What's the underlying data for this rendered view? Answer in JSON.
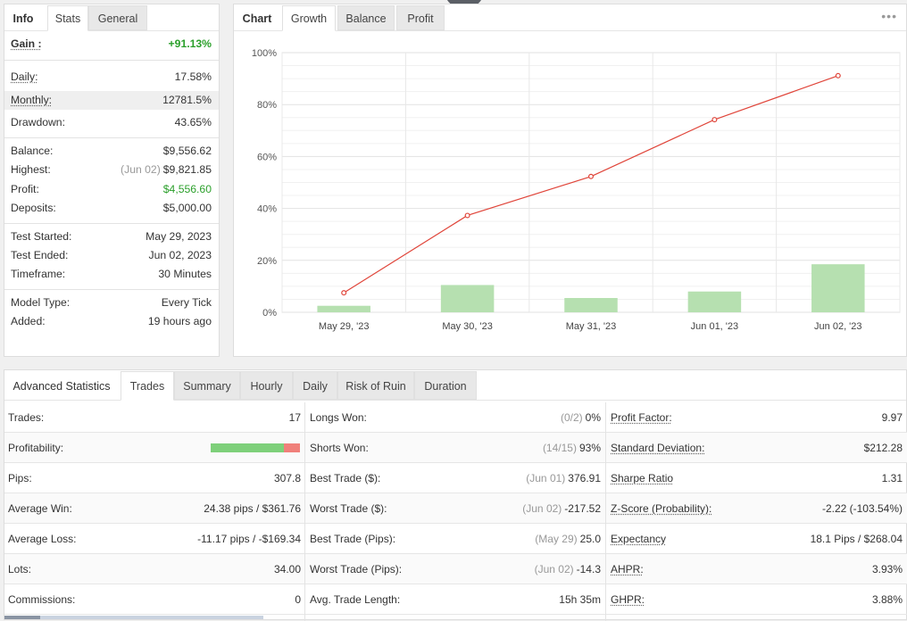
{
  "info_panel": {
    "tabs": [
      "Info",
      "Stats",
      "General"
    ],
    "rows": {
      "gain": {
        "label": "Gain :",
        "value": "+91.13%"
      },
      "daily": {
        "label": "Daily:",
        "value": "17.58%"
      },
      "monthly": {
        "label": "Monthly:",
        "value": "12781.5%"
      },
      "drawdown": {
        "label": "Drawdown:",
        "value": "43.65%"
      },
      "balance": {
        "label": "Balance:",
        "value": "$9,556.62"
      },
      "highest": {
        "label": "Highest:",
        "date": "(Jun 02)",
        "value": "$9,821.85"
      },
      "profit": {
        "label": "Profit:",
        "value": "$4,556.60"
      },
      "deposits": {
        "label": "Deposits:",
        "value": "$5,000.00"
      },
      "test_started": {
        "label": "Test Started:",
        "value": "May 29, 2023"
      },
      "test_ended": {
        "label": "Test Ended:",
        "value": "Jun 02, 2023"
      },
      "timeframe": {
        "label": "Timeframe:",
        "value": "30 Minutes"
      },
      "model_type": {
        "label": "Model Type:",
        "value": "Every Tick"
      },
      "added": {
        "label": "Added:",
        "value": "19 hours ago"
      }
    }
  },
  "chart_panel": {
    "tabs": [
      "Chart",
      "Growth",
      "Balance",
      "Profit"
    ],
    "menu": "•••"
  },
  "chart_data": {
    "type": "line",
    "categories": [
      "May 29, '23",
      "May 30, '23",
      "May 31, '23",
      "Jun 01, '23",
      "Jun 02, '23"
    ],
    "series": [
      {
        "type": "line",
        "values": [
          7.5,
          37.3,
          52.3,
          74.2,
          91.13
        ],
        "color": "#e0453a"
      },
      {
        "type": "bar",
        "values": [
          2.5,
          10.5,
          5.5,
          8.0,
          18.5
        ],
        "color": "#b6e0b0"
      }
    ],
    "ylim": [
      0,
      100
    ],
    "yticks": [
      "0%",
      "20%",
      "40%",
      "60%",
      "80%",
      "100%"
    ],
    "grid": true
  },
  "advanced": {
    "tabs": [
      "Advanced Statistics",
      "Trades",
      "Summary",
      "Hourly",
      "Daily",
      "Risk of Ruin",
      "Duration"
    ],
    "col1": [
      {
        "label": "Trades:",
        "value": "17"
      },
      {
        "label": "Profitability:",
        "value": ""
      },
      {
        "label": "Pips:",
        "value": "307.8"
      },
      {
        "label": "Average Win:",
        "value": "24.38 pips / $361.76"
      },
      {
        "label": "Average Loss:",
        "value": "-11.17 pips / -$169.34"
      },
      {
        "label": "Lots:",
        "value": "34.00"
      },
      {
        "label": "Commissions:",
        "value": "0"
      }
    ],
    "col2": [
      {
        "label": "Longs Won:",
        "muted": "(0/2)",
        "value": "0%"
      },
      {
        "label": "Shorts Won:",
        "muted": "(14/15)",
        "value": "93%"
      },
      {
        "label": "Best Trade ($):",
        "muted": "(Jun 01)",
        "value": "376.91"
      },
      {
        "label": "Worst Trade ($):",
        "muted": "(Jun 02)",
        "value": "-217.52"
      },
      {
        "label": "Best Trade (Pips):",
        "muted": "(May 29)",
        "value": "25.0"
      },
      {
        "label": "Worst Trade (Pips):",
        "muted": "(Jun 02)",
        "value": "-14.3"
      },
      {
        "label": "Avg. Trade Length:",
        "muted": "",
        "value": "15h 35m"
      }
    ],
    "col3": [
      {
        "label": "Profit Factor:",
        "value": "9.97"
      },
      {
        "label": "Standard Deviation:",
        "value": "$212.28"
      },
      {
        "label": "Sharpe Ratio",
        "value": "1.31"
      },
      {
        "label": "Z-Score (Probability):",
        "value": "-2.22 (-103.54%)"
      },
      {
        "label": "Expectancy",
        "value": "18.1 Pips / $268.04"
      },
      {
        "label": "AHPR:",
        "value": "3.93%"
      },
      {
        "label": "GHPR:",
        "value": "3.88%"
      }
    ],
    "profitability_fraction": 0.82,
    "profitability_colors": {
      "win": "#7ed07a",
      "loss": "#f0807a"
    }
  }
}
